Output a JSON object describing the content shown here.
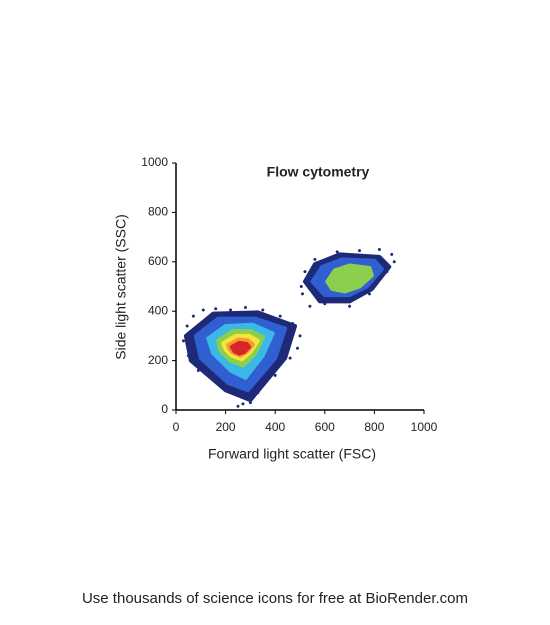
{
  "chart_data": {
    "type": "density",
    "title": "Flow cytometry",
    "xlabel": "Forward light scatter (FSC)",
    "ylabel": "Side light scatter (SSC)",
    "xlim": [
      0,
      1000
    ],
    "ylim": [
      0,
      1000
    ],
    "xticks": [
      0,
      200,
      400,
      600,
      800,
      1000
    ],
    "yticks": [
      0,
      200,
      400,
      600,
      800,
      1000
    ],
    "contours": [
      {
        "color": "#1e2a78",
        "x": [
          40,
          150,
          330,
          480,
          440,
          300,
          200,
          60
        ],
        "y": [
          300,
          390,
          395,
          340,
          210,
          40,
          80,
          200
        ]
      },
      {
        "color": "#2f5fd0",
        "x": [
          80,
          170,
          320,
          440,
          400,
          290,
          210,
          100
        ],
        "y": [
          300,
          370,
          370,
          330,
          210,
          80,
          110,
          210
        ]
      },
      {
        "color": "#3bb8e8",
        "x": [
          130,
          200,
          310,
          390,
          350,
          280,
          220,
          150
        ],
        "y": [
          290,
          340,
          345,
          310,
          220,
          130,
          160,
          230
        ]
      },
      {
        "color": "#8ccf4d",
        "x": [
          170,
          230,
          300,
          350,
          320,
          270,
          220,
          180
        ],
        "y": [
          280,
          320,
          320,
          295,
          230,
          180,
          200,
          240
        ]
      },
      {
        "color": "#f5e43c",
        "x": [
          190,
          240,
          295,
          330,
          300,
          265,
          225,
          200
        ],
        "y": [
          270,
          300,
          300,
          280,
          235,
          205,
          220,
          245
        ]
      },
      {
        "color": "#f39c2b",
        "x": [
          210,
          250,
          290,
          310,
          285,
          260,
          230,
          215
        ],
        "y": [
          262,
          285,
          282,
          265,
          235,
          220,
          232,
          248
        ]
      },
      {
        "color": "#d7262b",
        "x": [
          225,
          255,
          285,
          295,
          275,
          255,
          235
        ],
        "y": [
          255,
          272,
          268,
          255,
          235,
          228,
          238
        ]
      },
      {
        "color": "#1e2a78",
        "x": [
          520,
          560,
          660,
          820,
          860,
          790,
          700,
          580
        ],
        "y": [
          520,
          590,
          630,
          620,
          580,
          490,
          440,
          440
        ]
      },
      {
        "color": "#2f5fd0",
        "x": [
          550,
          590,
          670,
          800,
          830,
          770,
          700,
          600
        ],
        "y": [
          520,
          580,
          610,
          605,
          570,
          500,
          465,
          465
        ]
      },
      {
        "color": "#8ccf4d",
        "x": [
          610,
          640,
          700,
          780,
          790,
          740,
          680,
          630
        ],
        "y": [
          520,
          565,
          585,
          575,
          545,
          500,
          480,
          490
        ]
      }
    ],
    "points": {
      "color": "#1e2a78",
      "x": [
        30,
        45,
        70,
        110,
        160,
        220,
        280,
        350,
        420,
        470,
        500,
        490,
        460,
        400,
        330,
        270,
        250,
        300,
        50,
        90,
        510,
        540,
        600,
        700,
        780,
        850,
        880,
        870,
        820,
        740,
        650,
        560,
        520,
        505
      ],
      "y": [
        280,
        340,
        380,
        405,
        410,
        405,
        415,
        405,
        380,
        350,
        300,
        250,
        210,
        140,
        70,
        25,
        15,
        30,
        220,
        160,
        470,
        420,
        430,
        420,
        470,
        560,
        600,
        630,
        650,
        645,
        640,
        610,
        560,
        500
      ]
    }
  },
  "footer": "Use thousands of science icons for free at BioRender.com"
}
